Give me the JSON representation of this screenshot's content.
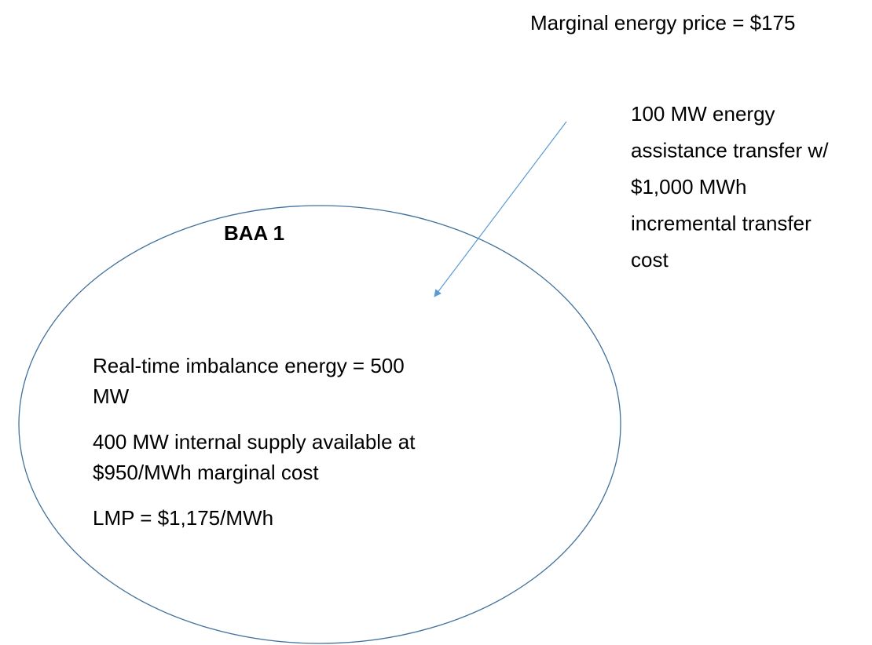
{
  "header": {
    "price": "Marginal energy price = $175"
  },
  "transfer": {
    "lines": [
      "100 MW energy",
      "assistance transfer w/",
      "$1,000 MWh",
      "incremental transfer",
      "cost"
    ]
  },
  "area": {
    "label": "BAA 1",
    "paragraphs": [
      {
        "lines": [
          "Real-time imbalance energy = 500",
          "MW"
        ]
      },
      {
        "lines": [
          "400 MW internal supply available at",
          "$950/MWh marginal cost"
        ]
      },
      {
        "lines": [
          "LMP = $1,175/MWh"
        ]
      }
    ]
  }
}
